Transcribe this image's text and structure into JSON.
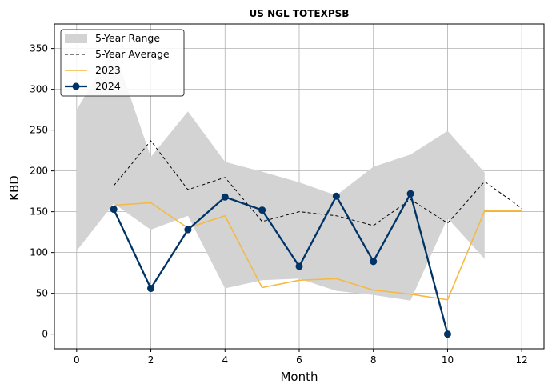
{
  "chart_data": {
    "type": "line",
    "title": "US NGL TOTEXPSB",
    "xlabel": "Month",
    "ylabel": "KBD",
    "xlim": [
      -0.6,
      12.6
    ],
    "ylim": [
      -18,
      380
    ],
    "xticks": [
      0,
      2,
      4,
      6,
      8,
      10,
      12
    ],
    "yticks": [
      0,
      50,
      100,
      150,
      200,
      250,
      300,
      350
    ],
    "grid": true,
    "legend_position": "top-left",
    "range": {
      "name": "5-Year Range",
      "color": "#d3d3d3",
      "x": [
        0,
        1,
        2,
        3,
        4,
        5,
        6,
        7,
        8,
        9,
        10,
        11
      ],
      "upper": [
        275,
        350,
        217,
        273,
        211,
        199,
        186,
        170,
        205,
        220,
        249,
        198
      ],
      "lower": [
        102,
        160,
        128,
        145,
        56,
        66,
        68,
        53,
        48,
        41,
        142,
        92
      ]
    },
    "series": [
      {
        "name": "5-Year Average",
        "color": "#000000",
        "style": "dashed",
        "x": [
          1,
          2,
          3,
          4,
          5,
          6,
          7,
          8,
          9,
          10,
          11,
          12
        ],
        "values": [
          182,
          237,
          177,
          192,
          138,
          150,
          145,
          133,
          165,
          136,
          187,
          154
        ]
      },
      {
        "name": "2023",
        "color": "#f5b942",
        "style": "solid",
        "x": [
          1,
          2,
          3,
          4,
          5,
          6,
          7,
          8,
          9,
          10,
          11,
          12
        ],
        "values": [
          158,
          161,
          130,
          145,
          57,
          66,
          68,
          54,
          49,
          42,
          151,
          151
        ]
      },
      {
        "name": "2024",
        "color": "#003366",
        "style": "solid-markers",
        "x": [
          1,
          2,
          3,
          4,
          5,
          6,
          7,
          8,
          9,
          10
        ],
        "values": [
          153,
          56,
          128,
          168,
          152,
          83,
          169,
          89,
          172,
          0
        ]
      }
    ]
  }
}
